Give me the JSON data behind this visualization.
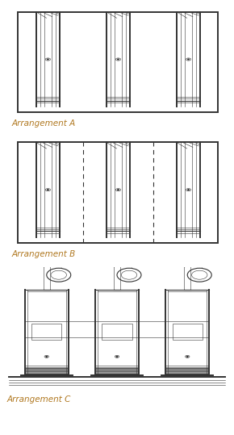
{
  "title_a": "Arrangement A",
  "title_b": "Arrangement B",
  "title_c": "Arrangement C",
  "label_color": "#b07820",
  "label_fontsize": 7.5,
  "bg_color": "#ffffff",
  "line_color": "#333333",
  "fig_width": 2.9,
  "fig_height": 5.39,
  "dpi": 100,
  "lw_main": 0.8,
  "lw_thin": 0.4,
  "lw_thick": 1.4
}
